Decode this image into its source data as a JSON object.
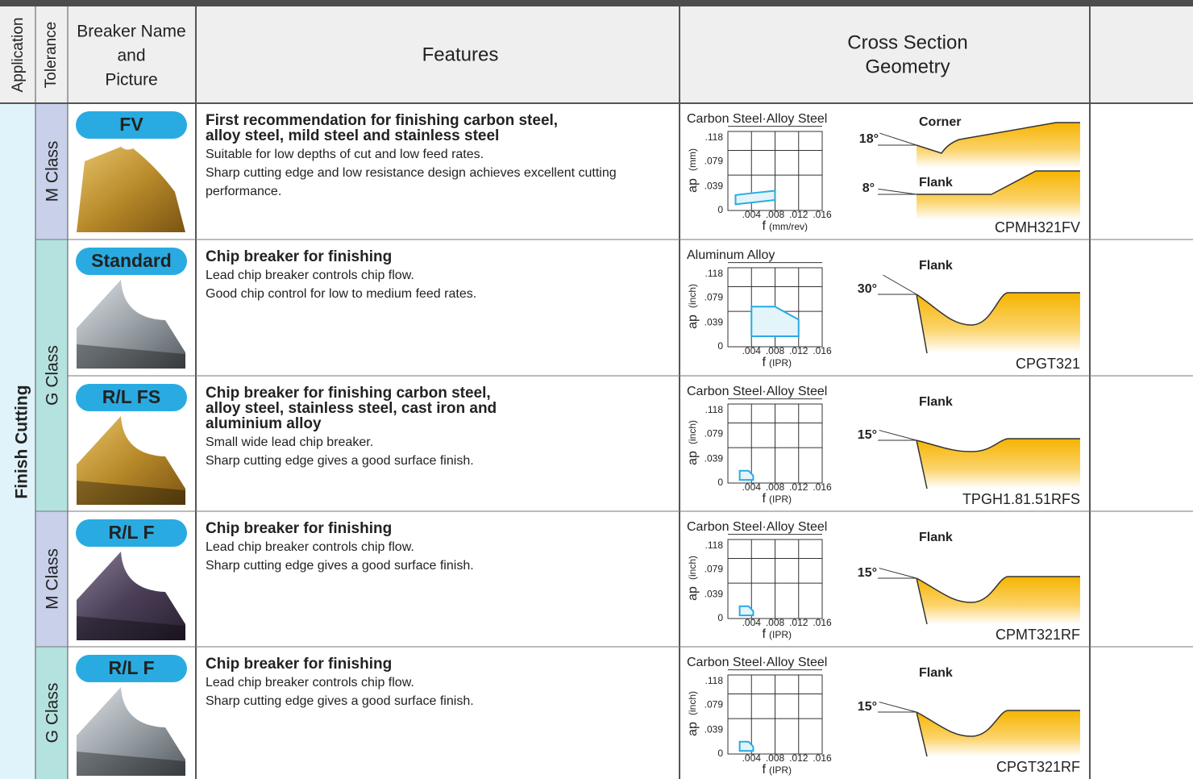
{
  "header": {
    "application": "Application",
    "tolerance": "Tolerance",
    "breaker_lines": [
      "Breaker Name",
      "and",
      "Picture"
    ],
    "features": "Features",
    "cross_section_lines": [
      "Cross Section",
      "Geometry"
    ]
  },
  "application": "Finish Cutting",
  "tolerance_groups": [
    "M Class",
    "G Class",
    "M Class",
    "G Class"
  ],
  "rows": [
    {
      "breaker": "FV",
      "features": {
        "title_lines": [
          "First recommendation for finishing carbon steel,",
          "alloy steel, mild steel and stainless steel"
        ],
        "description": [
          "Suitable for low depths of cut and low feed rates.",
          "Sharp cutting edge and low resistance design achieves excellent cutting performance."
        ]
      },
      "chart": {
        "material": "Carbon Steel·Alloy Steel",
        "y_label": "ap",
        "y_unit": "(mm)",
        "x_label": "f",
        "x_unit": "(mm/rev)",
        "xlim": [
          0,
          0.016
        ],
        "ylim": [
          0,
          0.128
        ],
        "xticks": [
          {
            "value": 0.004,
            "label": ".004"
          },
          {
            "value": 0.008,
            "label": ".008"
          },
          {
            "value": 0.012,
            "label": ".012"
          },
          {
            "value": 0.016,
            "label": ".016"
          }
        ],
        "yticks": [
          0,
          {
            "value": 0.039,
            "label": ".039"
          },
          {
            "value": 0.079,
            "label": ".079"
          },
          {
            "value": 0.118,
            "label": ".118"
          }
        ],
        "region": [
          [
            0.0013,
            0.01
          ],
          [
            0.0013,
            0.025
          ],
          [
            0.004,
            0.028
          ],
          [
            0.008,
            0.032
          ],
          [
            0.008,
            0.017
          ]
        ]
      },
      "geometry": [
        {
          "label": "Corner",
          "angle": "18°"
        },
        {
          "label": "Flank",
          "angle": "8°"
        }
      ],
      "part": "CPMH321FV"
    },
    {
      "breaker": "Standard",
      "features": {
        "title_lines": [
          "Chip breaker for finishing"
        ],
        "description": [
          "Lead chip breaker controls chip flow.",
          "Good chip control for low to medium feed rates."
        ]
      },
      "chart": {
        "material": "Aluminum Alloy",
        "y_label": "ap",
        "y_unit": "(inch)",
        "x_label": "f",
        "x_unit": "(IPR)",
        "xlim": [
          0,
          0.016
        ],
        "ylim": [
          0,
          0.128
        ],
        "xticks": [
          {
            "value": 0.004,
            "label": ".004"
          },
          {
            "value": 0.008,
            "label": ".008"
          },
          {
            "value": 0.012,
            "label": ".012"
          },
          {
            "value": 0.016,
            "label": ".016"
          }
        ],
        "yticks": [
          0,
          {
            "value": 0.039,
            "label": ".039"
          },
          {
            "value": 0.079,
            "label": ".079"
          },
          {
            "value": 0.118,
            "label": ".118"
          }
        ],
        "region": [
          [
            0.004,
            0.017
          ],
          [
            0.004,
            0.065
          ],
          [
            0.008,
            0.065
          ],
          [
            0.012,
            0.044
          ],
          [
            0.012,
            0.017
          ]
        ]
      },
      "geometry": [
        {
          "label": "Flank",
          "angle": "30°"
        }
      ],
      "part": "CPGT321"
    },
    {
      "breaker": "R/L FS",
      "features": {
        "title_lines": [
          "Chip breaker for finishing carbon steel,",
          "alloy steel, stainless steel, cast iron and",
          "aluminium alloy"
        ],
        "description": [
          "Small wide lead chip breaker.",
          "Sharp cutting edge gives a good surface finish."
        ]
      },
      "chart": {
        "material": "Carbon Steel·Alloy Steel",
        "y_label": "ap",
        "y_unit": "(inch)",
        "x_label": "f",
        "x_unit": "(IPR)",
        "xlim": [
          0,
          0.016
        ],
        "ylim": [
          0,
          0.128
        ],
        "xticks": [
          {
            "value": 0.004,
            "label": ".004"
          },
          {
            "value": 0.008,
            "label": ".008"
          },
          {
            "value": 0.012,
            "label": ".012"
          },
          {
            "value": 0.016,
            "label": ".016"
          }
        ],
        "yticks": [
          0,
          {
            "value": 0.039,
            "label": ".039"
          },
          {
            "value": 0.079,
            "label": ".079"
          },
          {
            "value": 0.118,
            "label": ".118"
          }
        ],
        "region": [
          [
            0.002,
            0.005
          ],
          [
            0.002,
            0.02
          ],
          [
            0.0035,
            0.02
          ],
          [
            0.0043,
            0.012
          ],
          [
            0.0043,
            0.005
          ]
        ]
      },
      "geometry": [
        {
          "label": "Flank",
          "angle": "15°"
        }
      ],
      "part": "TPGH1.81.51RFS"
    },
    {
      "breaker": "R/L F",
      "features": {
        "title_lines": [
          "Chip breaker for finishing"
        ],
        "description": [
          "Lead chip breaker controls chip flow.",
          "Sharp cutting edge gives a good surface finish."
        ]
      },
      "chart": {
        "material": "Carbon Steel·Alloy Steel",
        "y_label": "ap",
        "y_unit": "(inch)",
        "x_label": "f",
        "x_unit": "(IPR)",
        "xlim": [
          0,
          0.016
        ],
        "ylim": [
          0,
          0.128
        ],
        "xticks": [
          {
            "value": 0.004,
            "label": ".004"
          },
          {
            "value": 0.008,
            "label": ".008"
          },
          {
            "value": 0.012,
            "label": ".012"
          },
          {
            "value": 0.016,
            "label": ".016"
          }
        ],
        "yticks": [
          0,
          {
            "value": 0.039,
            "label": ".039"
          },
          {
            "value": 0.079,
            "label": ".079"
          },
          {
            "value": 0.118,
            "label": ".118"
          }
        ],
        "region": [
          [
            0.002,
            0.005
          ],
          [
            0.002,
            0.02
          ],
          [
            0.0035,
            0.02
          ],
          [
            0.0043,
            0.012
          ],
          [
            0.0043,
            0.005
          ]
        ]
      },
      "geometry": [
        {
          "label": "Flank",
          "angle": "15°"
        }
      ],
      "part": "CPMT321RF"
    },
    {
      "breaker": "R/L F",
      "features": {
        "title_lines": [
          "Chip breaker for finishing"
        ],
        "description": [
          "Lead chip breaker controls chip flow.",
          "Sharp cutting edge gives a good surface finish."
        ]
      },
      "chart": {
        "material": "Carbon Steel·Alloy Steel",
        "y_label": "ap",
        "y_unit": "(inch)",
        "x_label": "f",
        "x_unit": "(IPR)",
        "xlim": [
          0,
          0.016
        ],
        "ylim": [
          0,
          0.128
        ],
        "xticks": [
          {
            "value": 0.004,
            "label": ".004"
          },
          {
            "value": 0.008,
            "label": ".008"
          },
          {
            "value": 0.012,
            "label": ".012"
          },
          {
            "value": 0.016,
            "label": ".016"
          }
        ],
        "yticks": [
          0,
          {
            "value": 0.039,
            "label": ".039"
          },
          {
            "value": 0.079,
            "label": ".079"
          },
          {
            "value": 0.118,
            "label": ".118"
          }
        ],
        "region": [
          [
            0.002,
            0.005
          ],
          [
            0.002,
            0.02
          ],
          [
            0.0035,
            0.02
          ],
          [
            0.0043,
            0.012
          ],
          [
            0.0043,
            0.005
          ]
        ]
      },
      "geometry": [
        {
          "label": "Flank",
          "angle": "15°"
        }
      ],
      "part": "CPGT321RF"
    }
  ]
}
